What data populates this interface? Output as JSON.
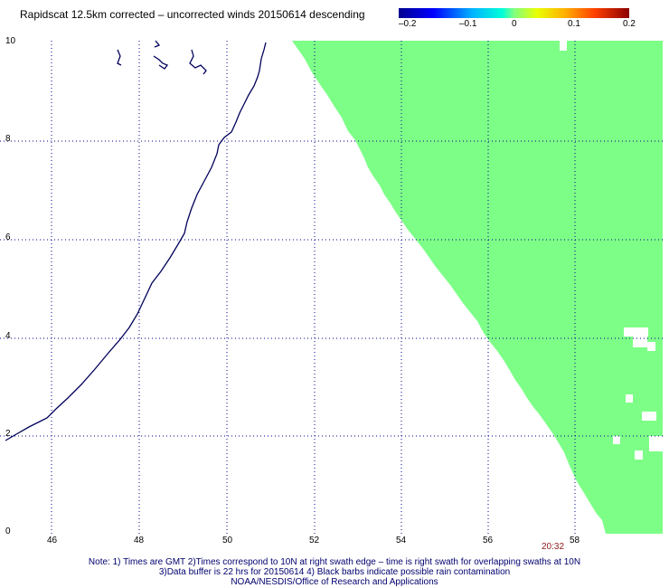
{
  "title": "Rapidscat 12.5km corrected – uncorrected winds 20150614 descending",
  "colorbar": {
    "labels": [
      "–0.2",
      "–0.1",
      "0",
      "0.1",
      "0.2"
    ],
    "colors": [
      "#0000a0",
      "#0000ff",
      "#00c8ff",
      "#00ffd0",
      "#7dff7d",
      "#e8ff00",
      "#ffc000",
      "#ff6000",
      "#e00000",
      "#8b0000"
    ]
  },
  "map": {
    "lon_ticks": [
      "46",
      "48",
      "50",
      "52",
      "54",
      "56",
      "58"
    ],
    "lat_ticks": [
      "0",
      "2",
      "4",
      "6",
      "8",
      "10"
    ],
    "lon_range": [
      44.8,
      60.5
    ],
    "lat_range": [
      0,
      10
    ],
    "grid": true,
    "swath_color": "#7dff87",
    "coast_color": "#00005a",
    "swath_value": 0,
    "time_label": "20:32"
  },
  "notes": [
    "Note: 1) Times are GMT 2)Times correspond to 10N at right swath edge – time is right swath for overlapping swaths at 10N",
    "3)Data buffer is 22 hrs for 20150614 4) Black barbs indicate possible rain contamination",
    "NOAA/NESDIS/Office of Research and Applications"
  ]
}
